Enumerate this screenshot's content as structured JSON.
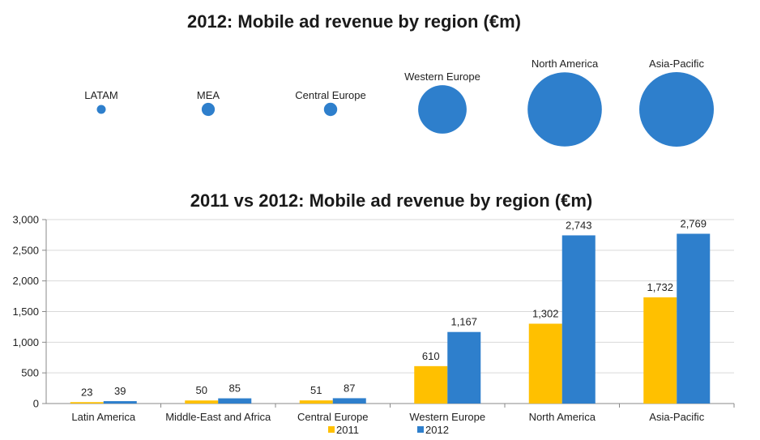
{
  "chart_data": [
    {
      "type": "bubble",
      "title": "2012: Mobile ad revenue by region (€m)",
      "categories": [
        "LATAM",
        "MEA",
        "Central Europe",
        "Western Europe",
        "North America",
        "Asia-Pacific"
      ],
      "values": [
        39,
        85,
        87,
        1167,
        2743,
        2769
      ],
      "color": "#2E7FCC"
    },
    {
      "type": "bar",
      "title": "2011 vs 2012: Mobile ad revenue by region (€m)",
      "categories": [
        "Latin America",
        "Middle-East and Africa",
        "Central Europe",
        "Western Europe",
        "North America",
        "Asia-Pacific"
      ],
      "series": [
        {
          "name": "2011",
          "values": [
            23,
            50,
            51,
            610,
            1302,
            1732
          ],
          "labels": [
            "23",
            "50",
            "51",
            "610",
            "1,302",
            "1,732"
          ],
          "color": "#FFC000"
        },
        {
          "name": "2012",
          "values": [
            39,
            85,
            87,
            1167,
            2743,
            2769
          ],
          "labels": [
            "39",
            "85",
            "87",
            "1,167",
            "2,743",
            "2,769"
          ],
          "color": "#2E7FCC"
        }
      ],
      "yticks": [
        0,
        500,
        1000,
        1500,
        2000,
        2500,
        3000
      ],
      "ytick_labels": [
        "0",
        "500",
        "1,000",
        "1,500",
        "2,000",
        "2,500",
        "3,000"
      ],
      "ylim": [
        0,
        3000
      ],
      "legend": "bottom"
    }
  ]
}
